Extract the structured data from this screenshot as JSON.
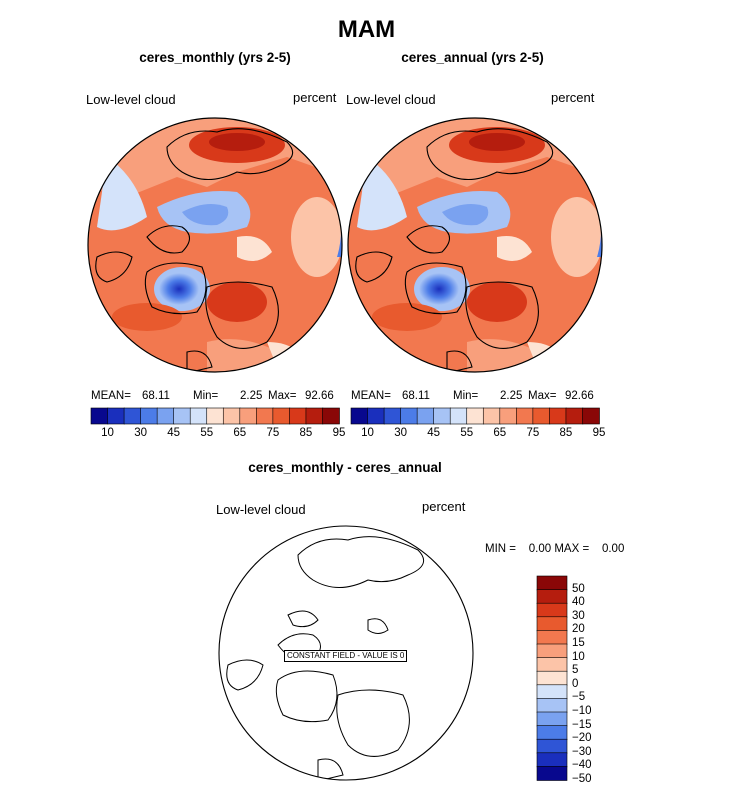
{
  "title": "MAM",
  "panels": [
    {
      "title": "ceres_monthly (yrs 2-5)",
      "left_label": "Low-level cloud",
      "right_label": "percent",
      "mean_label": "MEAN=",
      "mean": "68.11",
      "min_label": "Min=",
      "min": "2.25",
      "max_label": "Max=",
      "max": "92.66"
    },
    {
      "title": "ceres_annual (yrs 2-5)",
      "left_label": "Low-level cloud",
      "right_label": "percent",
      "mean_label": "MEAN=",
      "mean": "68.11",
      "min_label": "Min=",
      "min": "2.25",
      "max_label": "Max=",
      "max": "92.66"
    }
  ],
  "diff_panel": {
    "title": "ceres_monthly - ceres_annual",
    "left_label": "Low-level cloud",
    "right_label": "percent",
    "stats": "MIN =    0.00 MAX =    0.00",
    "constant_field_label": "CONSTANT FIELD - VALUE IS 0"
  },
  "chart_data": [
    {
      "type": "heatmap",
      "projection": "north polar stereographic",
      "variable": "Low-level cloud",
      "units": "percent",
      "title": "ceres_monthly (yrs 2-5)",
      "mean": 68.11,
      "min": 2.25,
      "max": 92.66,
      "colorbar_ticks": [
        "10",
        "30",
        "45",
        "55",
        "65",
        "75",
        "85",
        "95"
      ]
    },
    {
      "type": "heatmap",
      "projection": "north polar stereographic",
      "variable": "Low-level cloud",
      "units": "percent",
      "title": "ceres_annual (yrs 2-5)",
      "mean": 68.11,
      "min": 2.25,
      "max": 92.66,
      "colorbar_ticks": [
        "10",
        "30",
        "45",
        "55",
        "65",
        "75",
        "85",
        "95"
      ]
    },
    {
      "type": "heatmap",
      "projection": "north polar stereographic",
      "variable": "Low-level cloud",
      "units": "percent",
      "title": "ceres_monthly - ceres_annual",
      "min": 0.0,
      "max": 0.0,
      "constant_value": 0,
      "colorbar_ticks": [
        "50",
        "40",
        "30",
        "20",
        "15",
        "10",
        "5",
        "0",
        "−5",
        "−10",
        "−15",
        "−20",
        "−30",
        "−40",
        "−50"
      ]
    }
  ],
  "colors": {
    "horizontal_bar": [
      "#08088e",
      "#1a2fbd",
      "#2f55d6",
      "#4c7ce8",
      "#7aa2f0",
      "#a7c3f5",
      "#d4e3fa",
      "#fde3d3",
      "#fcc4a8",
      "#f89f7c",
      "#f2784f",
      "#e85a2e",
      "#d8391a",
      "#b51d0e",
      "#8a0707"
    ],
    "vertical_bar": [
      "#8a0707",
      "#b51d0e",
      "#d8391a",
      "#e85a2e",
      "#f2784f",
      "#f89f7c",
      "#fcc4a8",
      "#fde3d3",
      "#d4e3fa",
      "#a7c3f5",
      "#7aa2f0",
      "#4c7ce8",
      "#2f55d6",
      "#1a2fbd",
      "#08088e"
    ]
  }
}
